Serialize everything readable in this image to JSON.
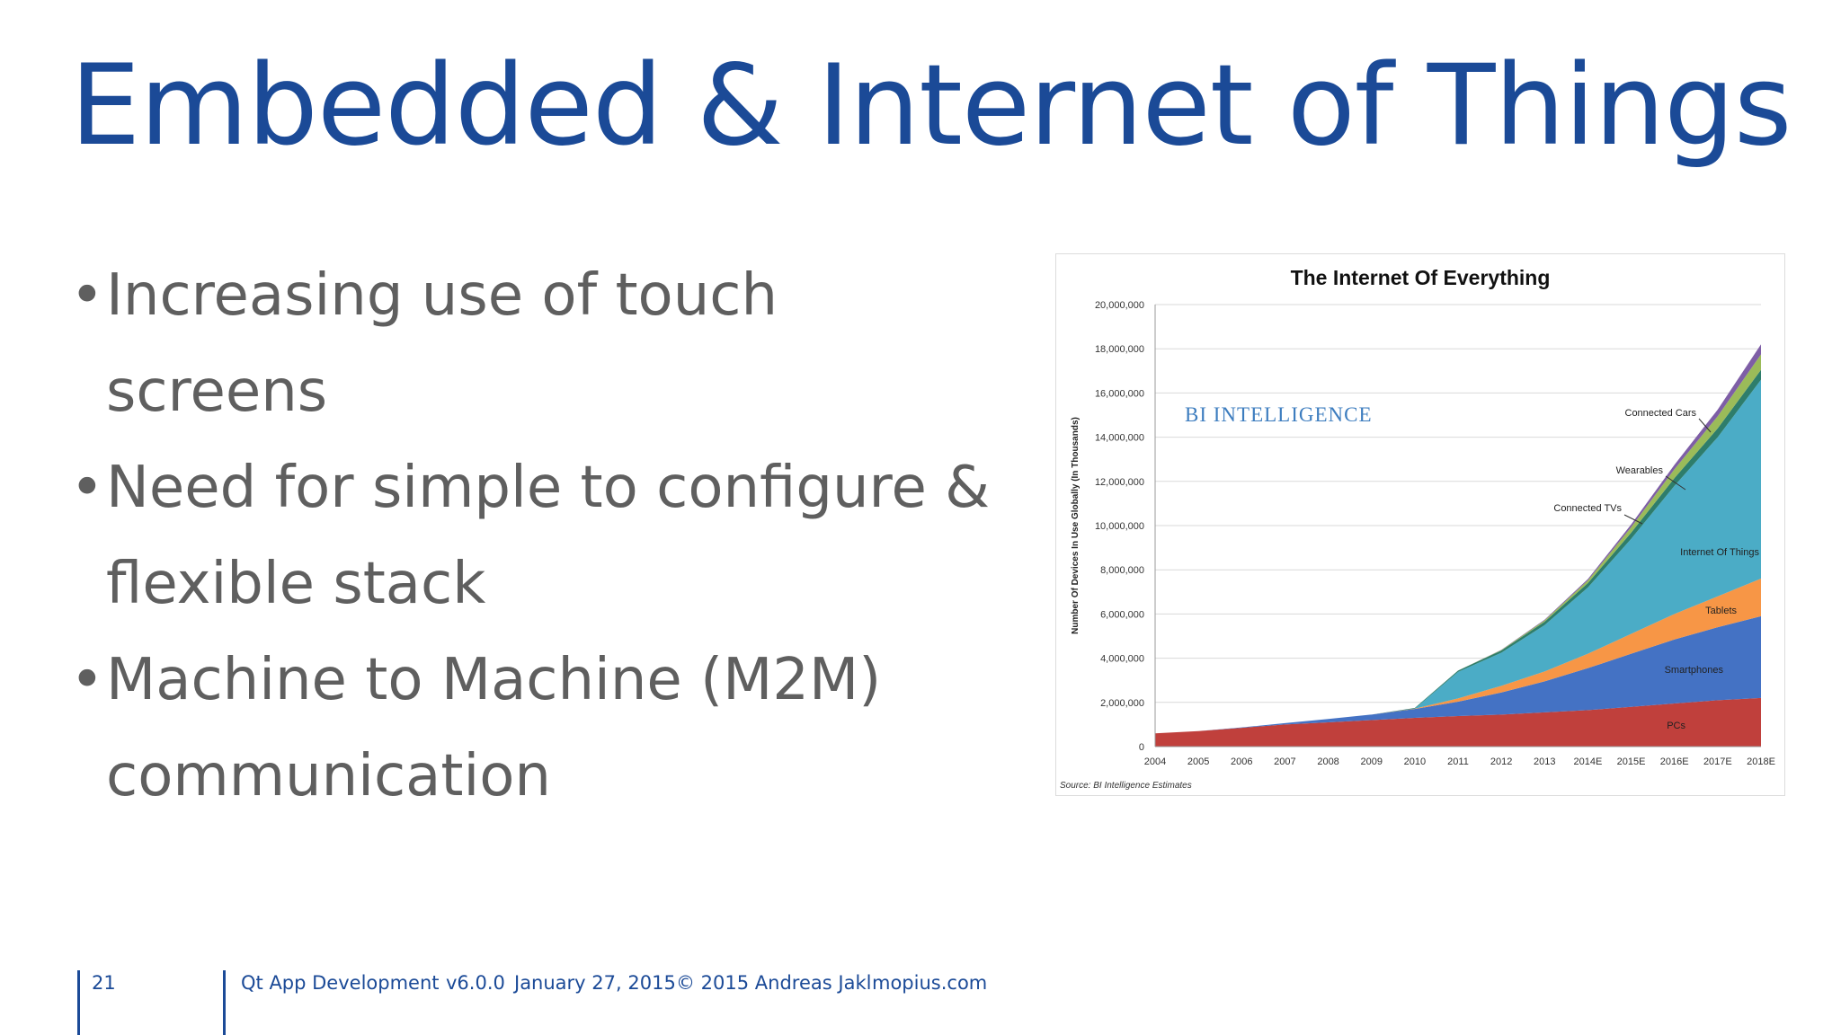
{
  "slide": {
    "title": "Embedded & Internet of Things",
    "bullets": [
      "Increasing use of touch screens",
      "Need for simple to configure & flexible stack",
      "Machine to Machine (M2M) communication"
    ],
    "bullet_symbol": "•"
  },
  "footer": {
    "page_number": "21",
    "course": "Qt App Development",
    "version": "v6.0.0",
    "date": "January 27, 2015",
    "copyright": "© 2015 Andreas Jakl",
    "website": "mopius.com"
  },
  "colors": {
    "title": "#1b4a97",
    "body_text": "#5f5f5f",
    "PCs": "#c0403c",
    "Smartphones": "#4472c4",
    "Tablets": "#f79646",
    "Internet Of Things": "#4bacc6",
    "Connected TVs": "#2e7d6b",
    "Wearables": "#9bbb59",
    "Connected Cars": "#7e5ea6"
  },
  "chart_data": {
    "type": "area",
    "stacked": true,
    "title": "The Internet Of Everything",
    "watermark": "BI Intelligence",
    "ylabel": "Number Of Devices In Use Globally (In Thousands)",
    "xlabel": "",
    "source": "Source: BI Intelligence Estimates",
    "ylim": [
      0,
      20000000
    ],
    "y_ticks": [
      "0",
      "2,000,000",
      "4,000,000",
      "6,000,000",
      "8,000,000",
      "10,000,000",
      "12,000,000",
      "14,000,000",
      "16,000,000",
      "18,000,000",
      "20,000,000"
    ],
    "categories": [
      "2004",
      "2005",
      "2006",
      "2007",
      "2008",
      "2009",
      "2010",
      "2011",
      "2012",
      "2013",
      "2014E",
      "2015E",
      "2016E",
      "2017E",
      "2018E"
    ],
    "series": [
      {
        "name": "PCs",
        "label": "PCs",
        "values": [
          600000,
          700000,
          850000,
          1000000,
          1100000,
          1200000,
          1300000,
          1380000,
          1450000,
          1550000,
          1650000,
          1800000,
          1950000,
          2100000,
          2200000
        ]
      },
      {
        "name": "Smartphones",
        "label": "Smartphones",
        "values": [
          0,
          0,
          20000,
          60000,
          150000,
          250000,
          400000,
          650000,
          1000000,
          1400000,
          1900000,
          2400000,
          2900000,
          3300000,
          3700000
        ]
      },
      {
        "name": "Tablets",
        "label": "Tablets",
        "values": [
          0,
          0,
          0,
          0,
          0,
          0,
          20000,
          150000,
          300000,
          450000,
          650000,
          900000,
          1150000,
          1400000,
          1700000
        ]
      },
      {
        "name": "Internet Of Things",
        "label": "Internet Of Things",
        "values": [
          0,
          0,
          0,
          0,
          0,
          0,
          0,
          1200000,
          1500000,
          2100000,
          3000000,
          4300000,
          5800000,
          7200000,
          9000000
        ]
      },
      {
        "name": "Connected TVs",
        "label": "Connected TVs",
        "values": [
          0,
          0,
          0,
          0,
          0,
          0,
          30000,
          60000,
          100000,
          150000,
          200000,
          280000,
          350000,
          400000,
          450000
        ]
      },
      {
        "name": "Wearables",
        "label": "Wearables",
        "values": [
          0,
          0,
          0,
          0,
          0,
          0,
          0,
          0,
          20000,
          60000,
          120000,
          250000,
          400000,
          550000,
          700000
        ]
      },
      {
        "name": "Connected Cars",
        "label": "Connected Cars",
        "values": [
          0,
          0,
          0,
          0,
          0,
          0,
          0,
          0,
          10000,
          30000,
          60000,
          120000,
          200000,
          300000,
          450000
        ]
      }
    ]
  }
}
